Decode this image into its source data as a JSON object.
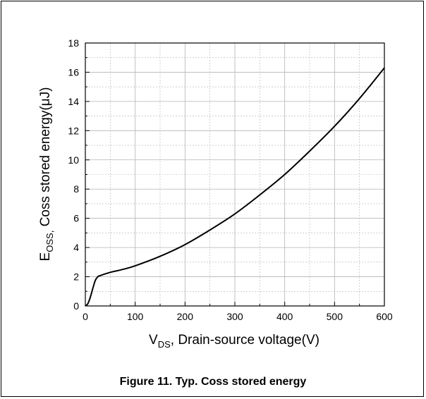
{
  "figure": {
    "caption": "Figure 11. Typ. Coss stored energy"
  },
  "chart_data": {
    "type": "line",
    "xlabel_main": "V",
    "xlabel_sub": "DS",
    "xlabel_rest": ", Drain-source voltage(V)",
    "ylabel_main": "E",
    "ylabel_sub": "OSS,",
    "ylabel_rest": " Coss stored energy(μJ)",
    "xlim": [
      0,
      600
    ],
    "ylim": [
      0,
      18
    ],
    "xticks": [
      0,
      100,
      200,
      300,
      400,
      500,
      600
    ],
    "yticks": [
      0,
      2,
      4,
      6,
      8,
      10,
      12,
      14,
      16,
      18
    ],
    "grid": true,
    "line_color": "#000000",
    "grid_color": "#b3b3b3",
    "series": [
      {
        "x": [
          0,
          5,
          10,
          15,
          20,
          25,
          30,
          50,
          75,
          100,
          150,
          200,
          250,
          300,
          350,
          400,
          450,
          500,
          550,
          600
        ],
        "y": [
          0,
          0.15,
          0.6,
          1.2,
          1.75,
          2.0,
          2.08,
          2.3,
          2.5,
          2.75,
          3.4,
          4.2,
          5.2,
          6.3,
          7.6,
          9.0,
          10.6,
          12.3,
          14.2,
          16.3
        ]
      }
    ]
  }
}
